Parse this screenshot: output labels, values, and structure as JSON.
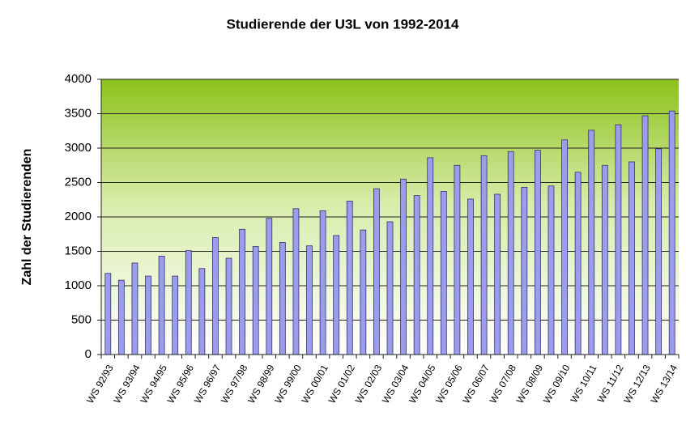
{
  "chart_data": {
    "type": "bar",
    "title": "Studierende der U3L von 1992-2014",
    "y_label": "Zahl der Studierenden",
    "categories": [
      "WS 92/93",
      null,
      "WS 93/94",
      null,
      "WS 94/95",
      null,
      "WS 95/96",
      null,
      "WS 96/97",
      null,
      "WS 97/98",
      null,
      "WS 98/99",
      null,
      "WS 99/00",
      null,
      "WS 00/01",
      null,
      "WS 01/02",
      null,
      "WS 02/03",
      null,
      "WS 03/04",
      null,
      "WS 04/05",
      null,
      "WS 05/06",
      null,
      "WS 06/07",
      null,
      "WS 07/08",
      null,
      "WS 08/09",
      null,
      "WS 09/10",
      null,
      "WS 10/11",
      null,
      "WS 11/12",
      null,
      "WS 12/13",
      null,
      "WS 13/14"
    ],
    "values": [
      1180,
      1080,
      1330,
      1140,
      1430,
      1140,
      1510,
      1250,
      1700,
      1400,
      1820,
      1570,
      1980,
      1630,
      2120,
      1580,
      2090,
      1730,
      2230,
      1810,
      2410,
      1930,
      2550,
      2310,
      2860,
      2370,
      2750,
      2260,
      2890,
      2330,
      2950,
      2430,
      2970,
      2450,
      3120,
      2650,
      3260,
      2750,
      3340,
      2800,
      3470,
      2990,
      3540
    ],
    "color": "#9c9cee",
    "ylim": [
      0,
      4000
    ],
    "yticks": [
      0,
      500,
      1000,
      1500,
      2000,
      2500,
      3000,
      3500,
      4000
    ],
    "grid": true
  }
}
